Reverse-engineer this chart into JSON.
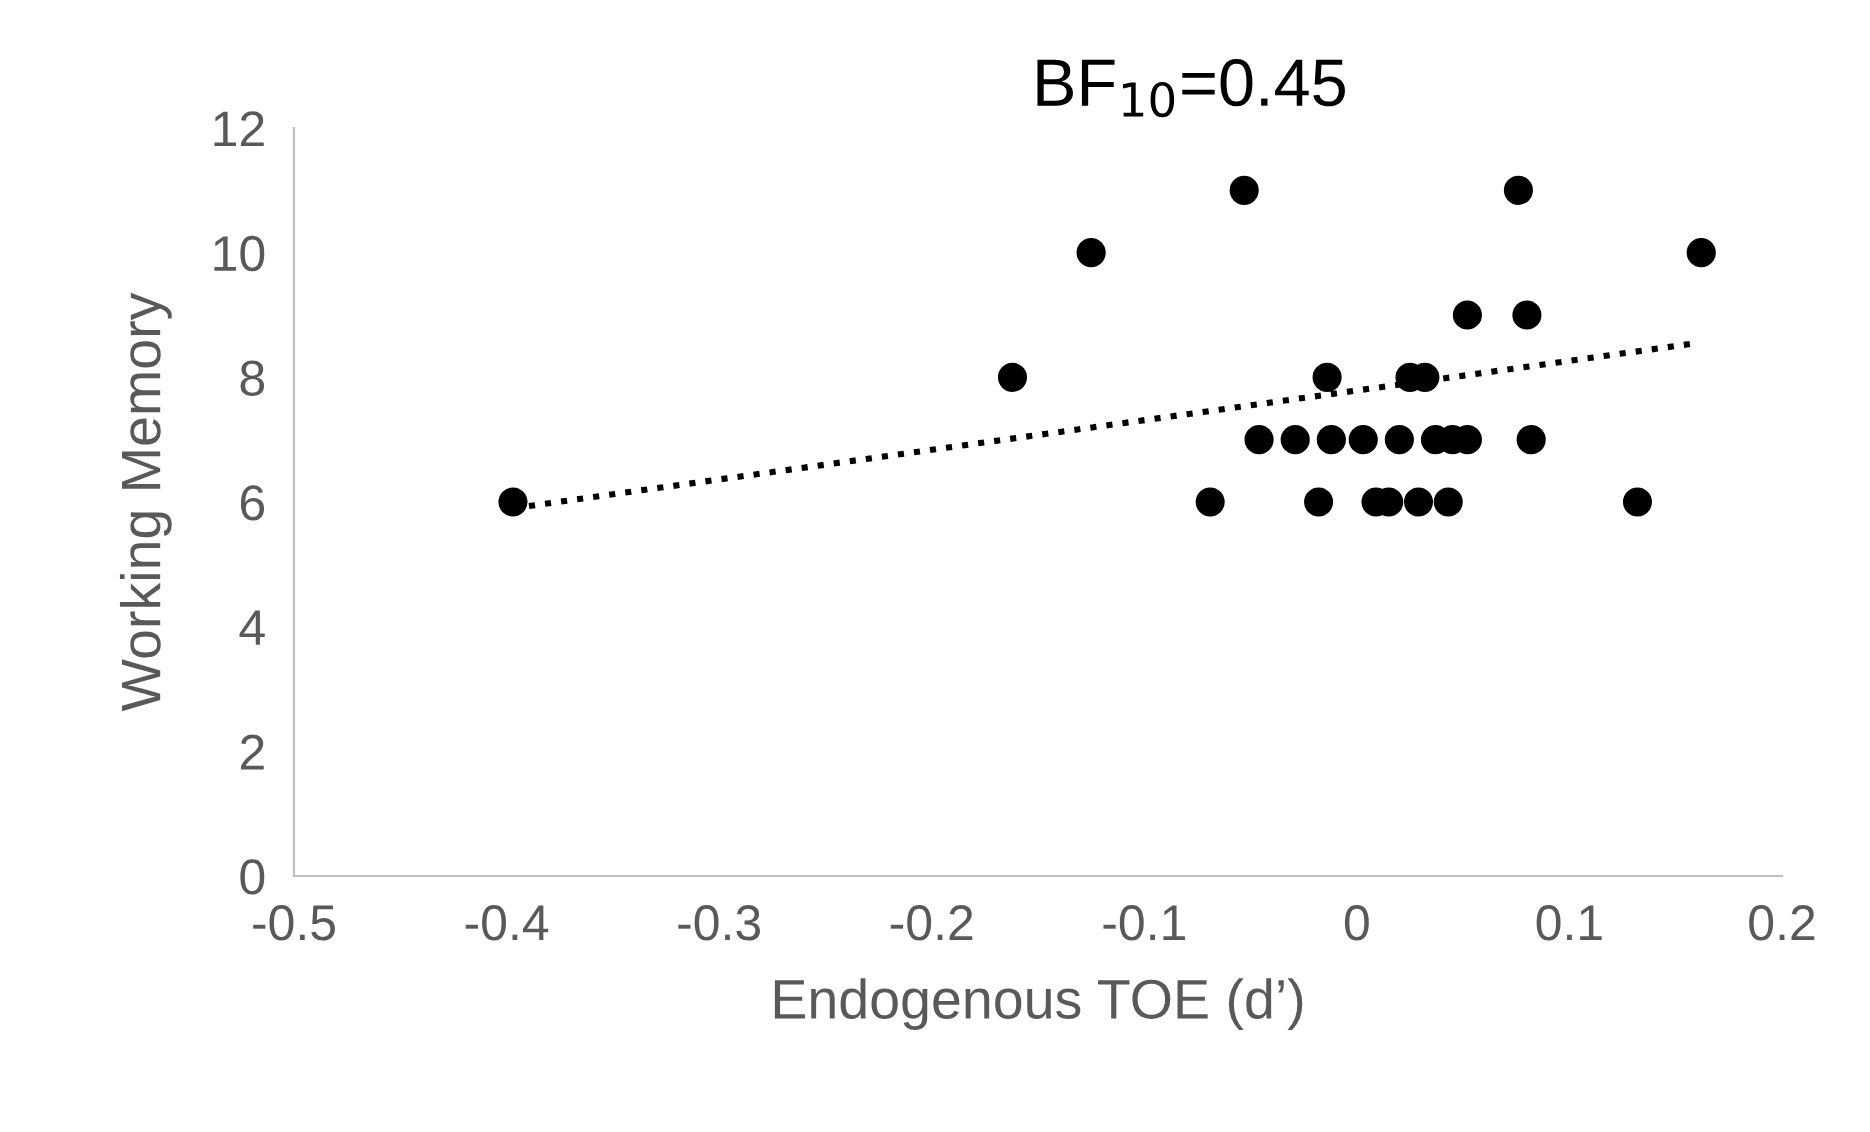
{
  "chart_data": {
    "type": "scatter",
    "title": "BF$_{10}$=0.45",
    "xlabel": "Endogenous TOE (d’)",
    "ylabel": "Working Memory",
    "xlim": [
      -0.5,
      0.2
    ],
    "xticks": [
      -0.5,
      -0.4,
      -0.3,
      -0.2,
      -0.1,
      0,
      0.1,
      0.2
    ],
    "ylim": [
      0,
      12
    ],
    "yticks": [
      0,
      2,
      4,
      6,
      8,
      10,
      12
    ],
    "grid": false,
    "legend": false,
    "series": [
      {
        "color": "#000000",
        "marker": "circle",
        "x": [
          -0.397,
          -0.162,
          -0.125,
          -0.053,
          0.076,
          0.162,
          0.052,
          0.08,
          -0.014,
          0.025,
          0.032,
          -0.046,
          -0.029,
          -0.012,
          0.003,
          0.02,
          0.037,
          0.045,
          0.052,
          0.082,
          -0.069,
          -0.018,
          0.009,
          0.015,
          0.029,
          0.043,
          0.132
        ],
        "values": [
          6,
          8,
          10,
          11,
          11,
          10,
          9,
          9,
          8,
          8,
          8,
          7,
          7,
          7,
          7,
          7,
          7,
          7,
          7,
          7,
          6,
          6,
          6,
          6,
          6,
          6,
          6
        ]
      },
      {
        "type": "line",
        "color": "#000000",
        "marker": "none",
        "line_style": "dotted",
        "x": [
          -0.397,
          0.16
        ],
        "values": [
          5.9,
          8.55
        ]
      }
    ]
  }
}
